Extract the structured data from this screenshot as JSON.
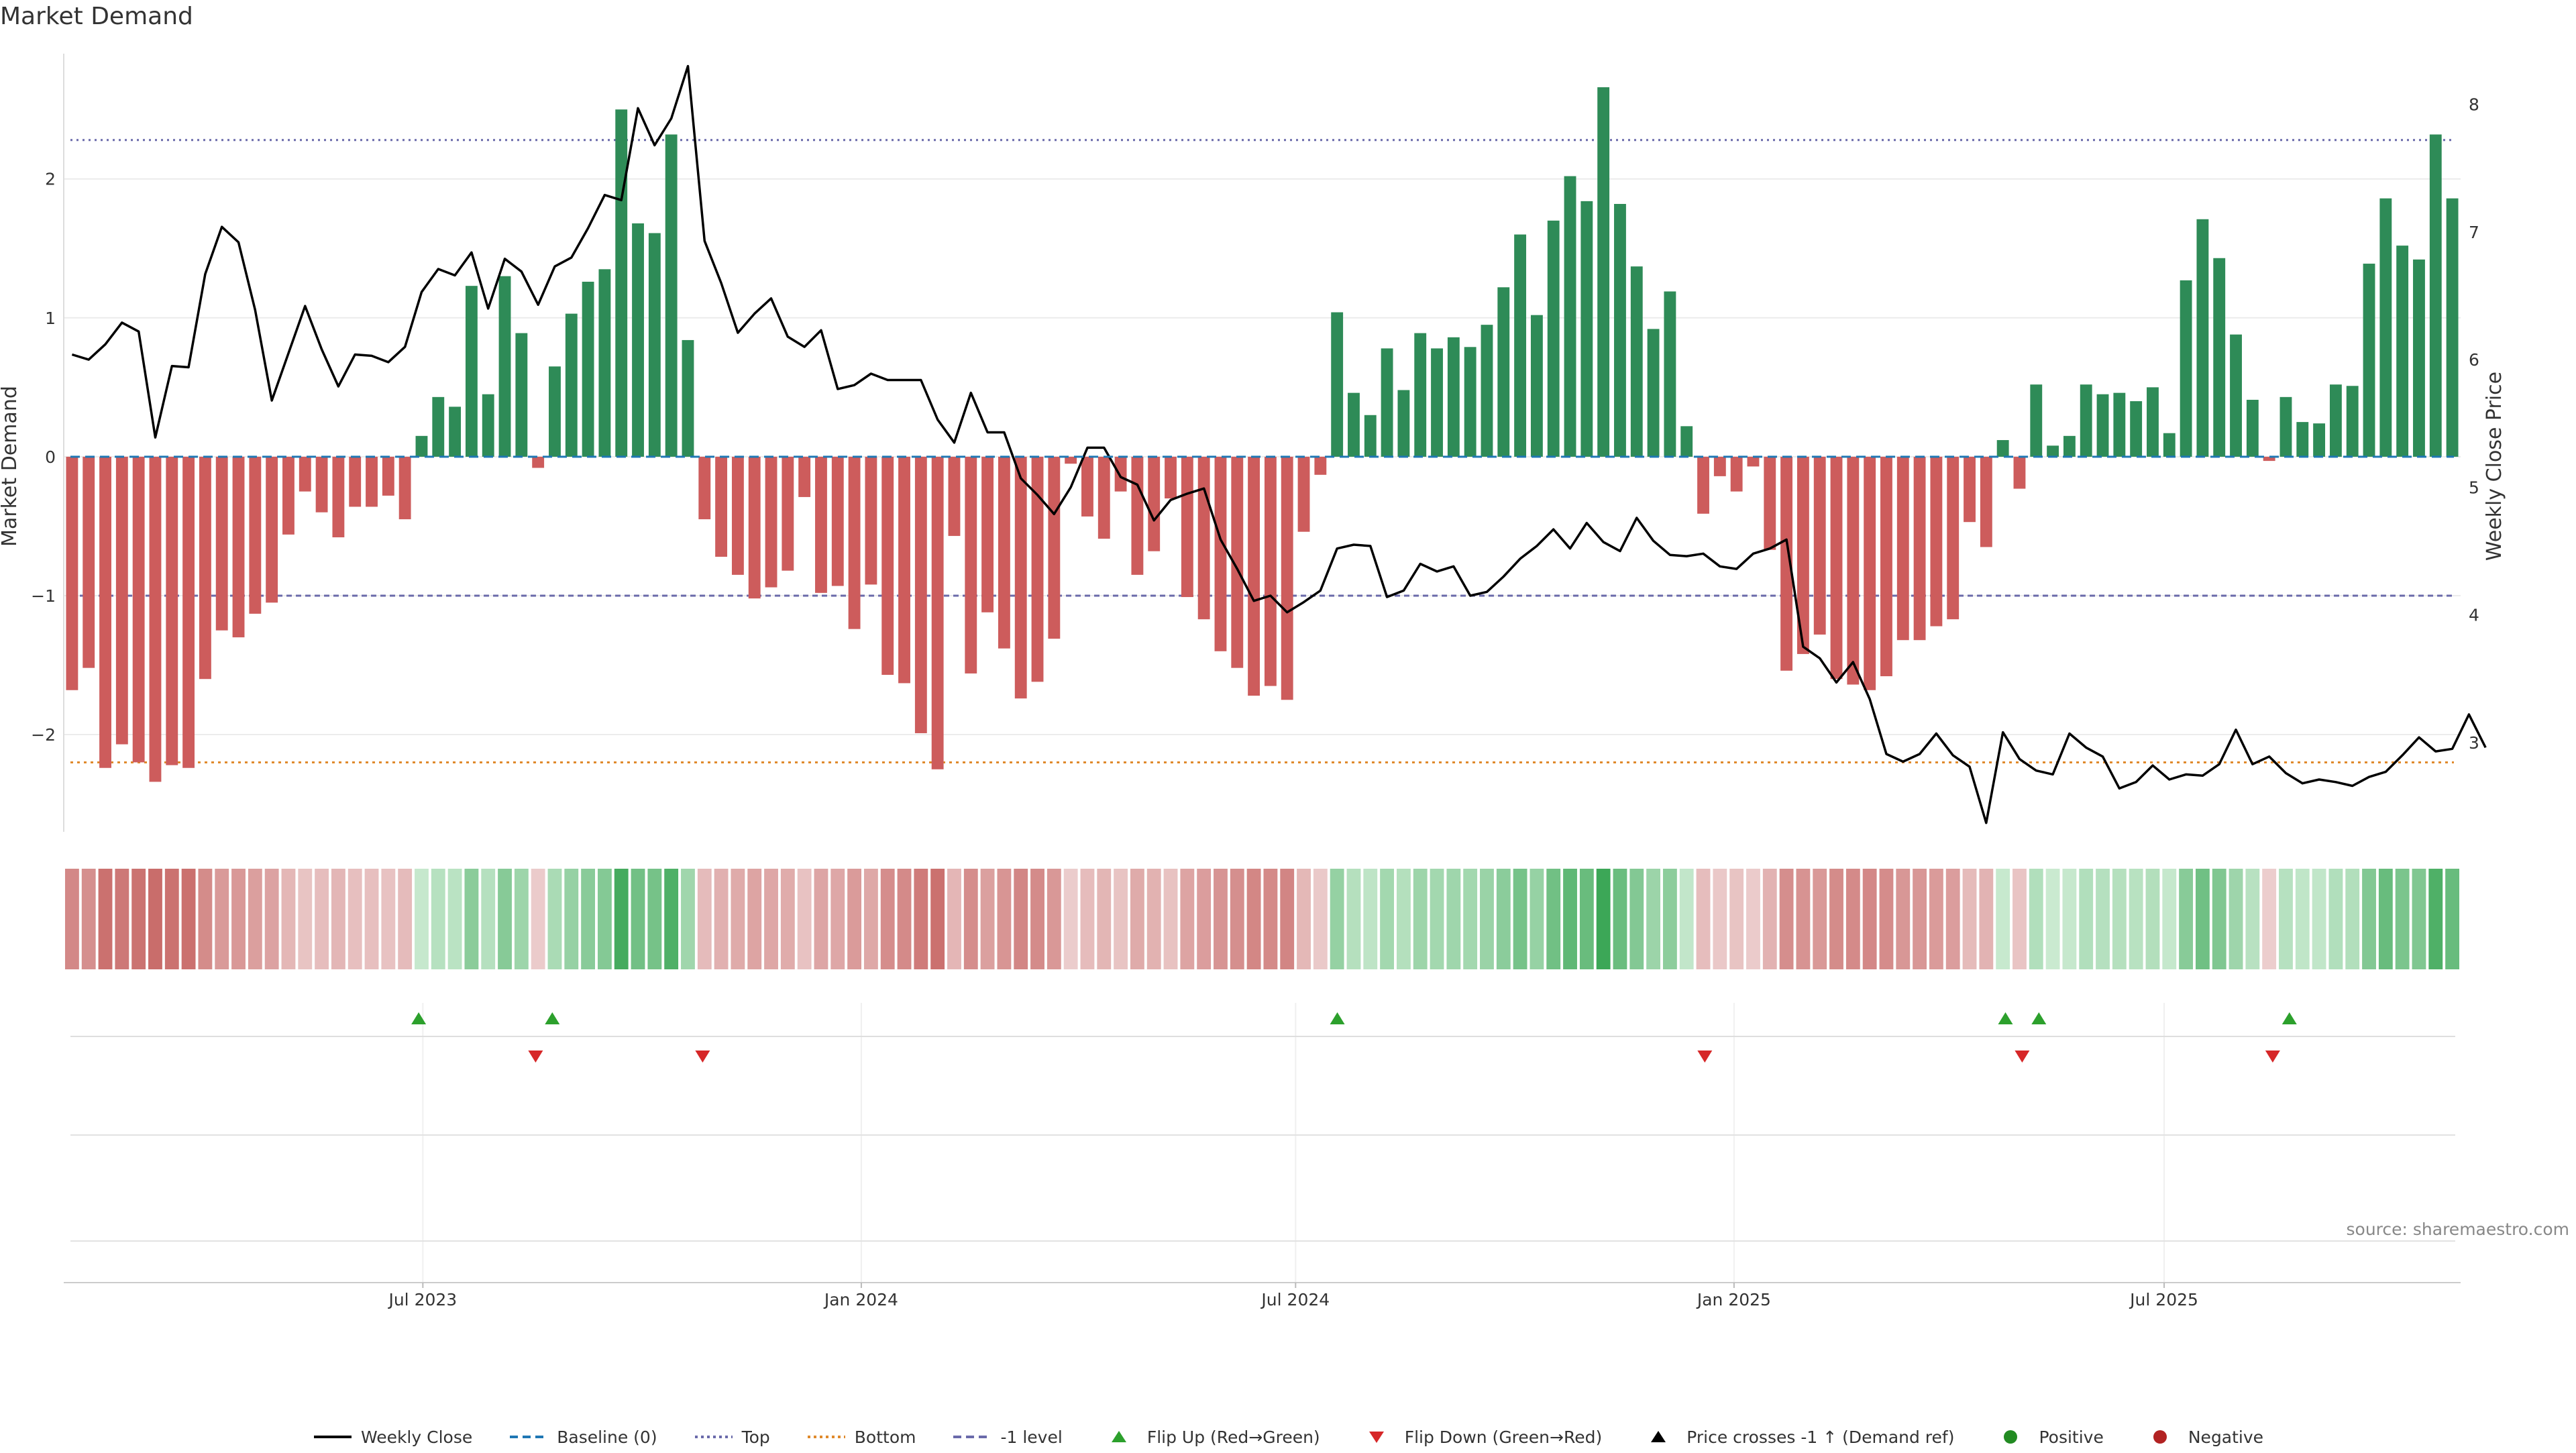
{
  "title": "Market Demand",
  "source": "source: sharemaestro.com",
  "colors": {
    "positive": "#2e8b57",
    "negative": "#cd5c5c",
    "price_line": "#000000",
    "baseline": "#1f77b4",
    "top_line": "#6a6aaa",
    "bottom_line": "#e08a2c",
    "minus1_line": "#6a6aaa",
    "flip_up": "#2ca02c",
    "flip_down": "#d62728",
    "heat_pos_strong": "#3aa655",
    "heat_neg_strong": "#c8605e"
  },
  "legend": [
    {
      "label": "Weekly Close",
      "kind": "line",
      "color": "#000000"
    },
    {
      "label": "Baseline (0)",
      "kind": "dashed",
      "color": "#1f77b4"
    },
    {
      "label": "Top",
      "kind": "dotted",
      "color": "#6a6aaa"
    },
    {
      "label": "Bottom",
      "kind": "dotted",
      "color": "#e08a2c"
    },
    {
      "label": "-1 level",
      "kind": "dashed",
      "color": "#6a6aaa"
    },
    {
      "label": "Flip Up (Red→Green)",
      "kind": "tri-up",
      "color": "#2ca02c"
    },
    {
      "label": "Flip Down (Green→Red)",
      "kind": "tri-down",
      "color": "#d62728"
    },
    {
      "label": "Price crosses -1 ↑ (Demand ref)",
      "kind": "tri-up",
      "color": "#000000"
    },
    {
      "label": "Positive",
      "kind": "dot",
      "color": "#228b22"
    },
    {
      "label": "Negative",
      "kind": "dot",
      "color": "#b22222"
    }
  ],
  "chart_data": {
    "type": "bar",
    "title": "Market Demand",
    "ylabel": "Market Demand",
    "y2label": "Weekly Close Price",
    "xlabel": "",
    "ylim": [
      -2.7,
      2.95
    ],
    "y2lim": [
      2.3,
      8.45
    ],
    "yticks": [
      -2,
      -1,
      0,
      1,
      2
    ],
    "y2ticks": [
      3,
      4,
      5,
      6,
      7,
      8
    ],
    "xticks": [
      {
        "label": "Jul 2023",
        "week": 43
      },
      {
        "label": "Jan 2024",
        "week": 95.5
      },
      {
        "label": "Jul 2024",
        "week": 147.5
      },
      {
        "label": "Jan 2025",
        "week": 200
      },
      {
        "label": "Jul 2025",
        "week": 251.5
      }
    ],
    "x_range": [
      0,
      287
    ],
    "reference_levels": {
      "top": 2.28,
      "bottom": -2.2,
      "minus_one": -1,
      "baseline": 0
    },
    "demand": [
      -1.68,
      -1.52,
      -2.24,
      -2.07,
      -2.2,
      -2.34,
      -2.22,
      -2.24,
      -1.6,
      -1.25,
      -1.3,
      -1.13,
      -1.05,
      -0.56,
      -0.25,
      -0.4,
      -0.58,
      -0.36,
      -0.36,
      -0.28,
      -0.45,
      0.15,
      0.43,
      0.36,
      1.23,
      0.45,
      1.3,
      0.89,
      -0.08,
      0.65,
      1.03,
      1.26,
      1.35,
      2.5,
      1.68,
      1.61,
      2.32,
      0.84,
      -0.45,
      -0.72,
      -0.85,
      -1.02,
      -0.94,
      -0.82,
      -0.29,
      -0.98,
      -0.93,
      -1.24,
      -0.92,
      -1.57,
      -1.63,
      -1.99,
      -2.25,
      -0.57,
      -1.56,
      -1.12,
      -1.38,
      -1.74,
      -1.62,
      -1.31,
      -0.05,
      -0.43,
      -0.59,
      -0.25,
      -0.85,
      -0.68,
      -0.3,
      -1.01,
      -1.17,
      -1.4,
      -1.52,
      -1.72,
      -1.65,
      -1.75,
      -0.54,
      -0.13,
      1.04,
      0.46,
      0.3,
      0.78,
      0.48,
      0.89,
      0.78,
      0.86,
      0.79,
      0.95,
      1.22,
      1.6,
      1.02,
      1.7,
      2.02,
      1.84,
      2.66,
      1.82,
      1.37,
      0.92,
      1.19,
      0.22,
      -0.41,
      -0.14,
      -0.25,
      -0.07,
      -0.67,
      -1.54,
      -1.42,
      -1.28,
      -1.6,
      -1.64,
      -1.68,
      -1.58,
      -1.32,
      -1.32,
      -1.22,
      -1.17,
      -0.47,
      -0.65,
      0.12,
      -0.23,
      0.52,
      0.08,
      0.15,
      0.52,
      0.45,
      0.46,
      0.4,
      0.5,
      0.17,
      1.27,
      1.71,
      1.43,
      0.88,
      0.41,
      -0.03,
      0.43,
      0.25,
      0.24,
      0.52,
      0.51,
      1.39,
      1.86,
      1.52,
      1.42,
      2.32,
      1.86
    ],
    "weekly_close": [
      6.04,
      6.0,
      6.12,
      6.29,
      6.22,
      5.39,
      5.95,
      5.94,
      6.67,
      7.04,
      6.92,
      6.39,
      5.68,
      6.05,
      6.42,
      6.08,
      5.79,
      6.04,
      6.03,
      5.98,
      6.1,
      6.53,
      6.71,
      6.66,
      6.84,
      6.4,
      6.79,
      6.69,
      6.43,
      6.73,
      6.8,
      7.03,
      7.29,
      7.25,
      7.97,
      7.68,
      7.89,
      8.3,
      6.93,
      6.6,
      6.21,
      6.36,
      6.48,
      6.18,
      6.1,
      6.23,
      5.77,
      5.8,
      5.89,
      5.84,
      5.84,
      5.84,
      5.53,
      5.35,
      5.74,
      5.43,
      5.43,
      5.07,
      4.94,
      4.79,
      5.0,
      5.31,
      5.31,
      5.08,
      5.02,
      4.74,
      4.9,
      4.95,
      4.99,
      4.59,
      4.36,
      4.11,
      4.15,
      4.02,
      4.1,
      4.19,
      4.52,
      4.55,
      4.54,
      4.14,
      4.19,
      4.4,
      4.34,
      4.38,
      4.15,
      4.18,
      4.3,
      4.44,
      4.54,
      4.67,
      4.52,
      4.72,
      4.57,
      4.5,
      4.76,
      4.58,
      4.47,
      4.46,
      4.48,
      4.38,
      4.36,
      4.48,
      4.52,
      4.59,
      3.75,
      3.66,
      3.47,
      3.63,
      3.34,
      2.91,
      2.85,
      2.91,
      3.07,
      2.9,
      2.81,
      2.37,
      3.08,
      2.87,
      2.78,
      2.75,
      3.07,
      2.96,
      2.89,
      2.64,
      2.69,
      2.82,
      2.71,
      2.75,
      2.74,
      2.83,
      3.1,
      2.83,
      2.89,
      2.76,
      2.68,
      2.71,
      2.69,
      2.66,
      2.73,
      2.77,
      2.9,
      3.04,
      2.93,
      2.95,
      3.22,
      2.96
    ],
    "flip_up_weeks": [
      42.5,
      58.5,
      152.5,
      232.5,
      236.5,
      266.5
    ],
    "flip_down_weeks": [
      56.5,
      76.5,
      196.5,
      234.5,
      264.5
    ]
  }
}
